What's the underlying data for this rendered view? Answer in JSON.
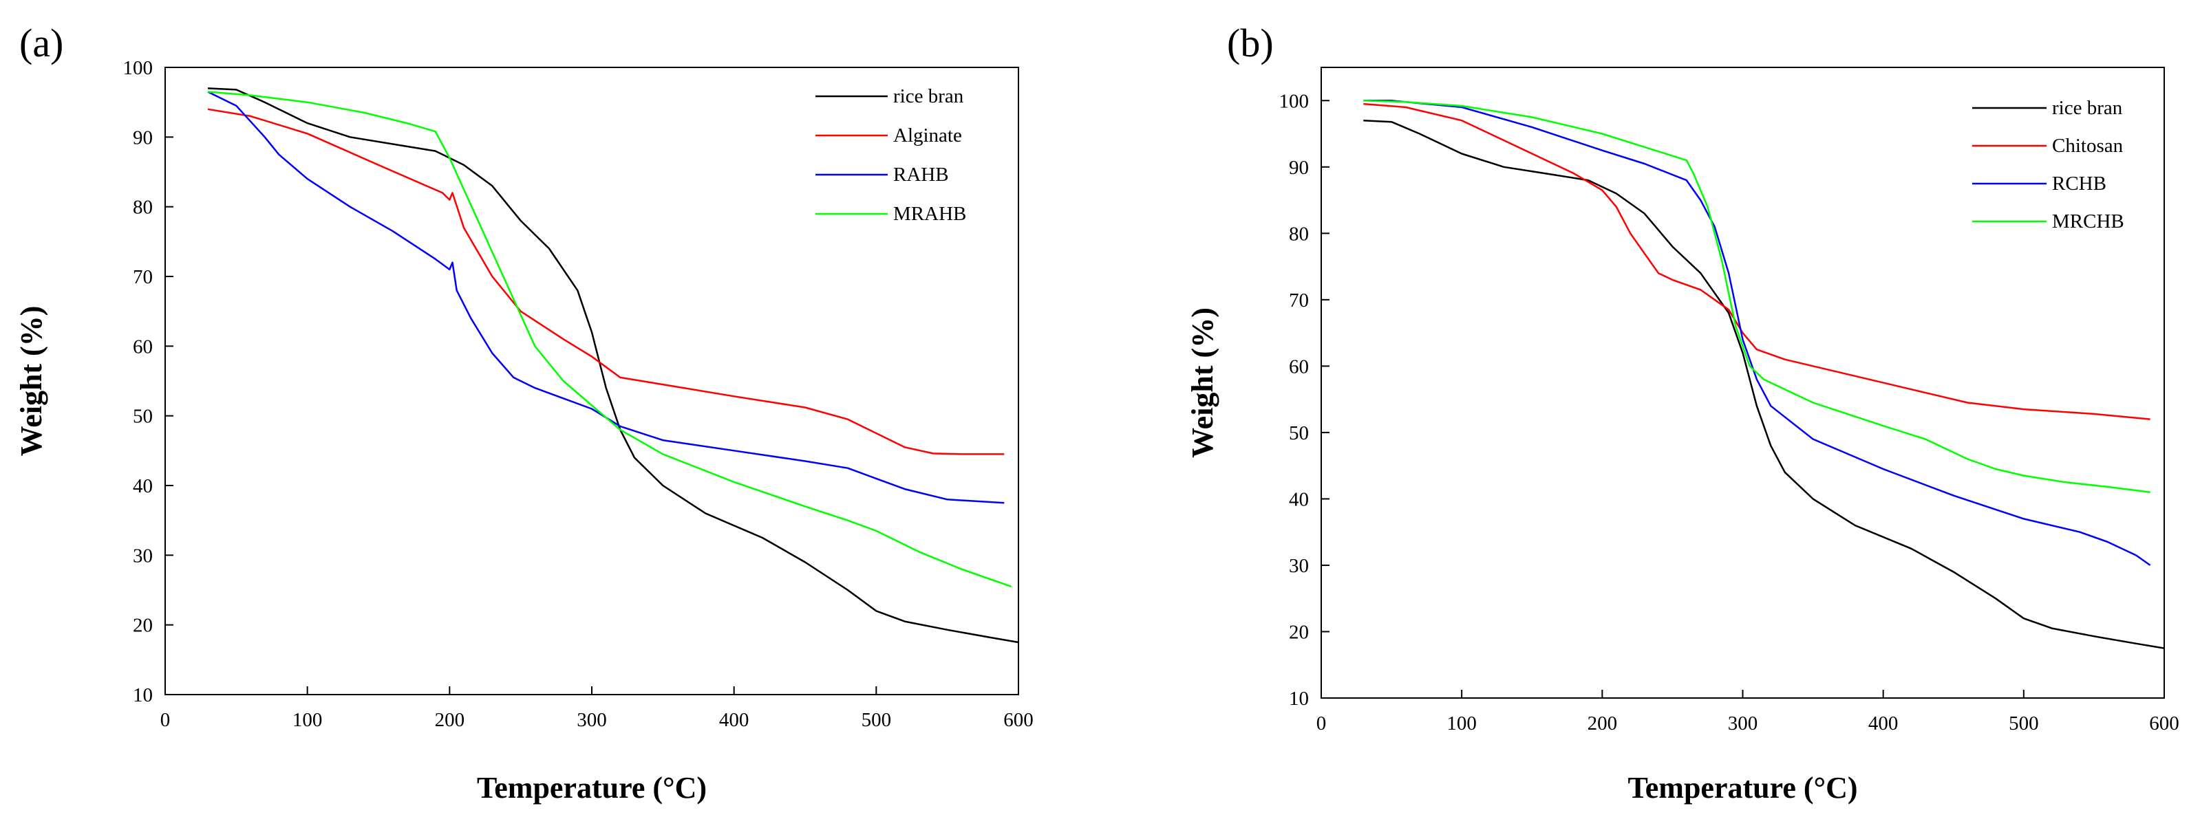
{
  "chart_data": [
    {
      "type": "line",
      "panel_label": "(a)",
      "xlabel": "Temperature (°C)",
      "ylabel": "Weight (%)",
      "xlim": [
        0,
        600
      ],
      "ylim": [
        10,
        100
      ],
      "xticks": [
        0,
        100,
        200,
        300,
        400,
        500,
        600
      ],
      "yticks": [
        10,
        20,
        30,
        40,
        50,
        60,
        70,
        80,
        90,
        100
      ],
      "legend_position": "top-right",
      "series": [
        {
          "name": "rice bran",
          "color": "#000000",
          "x": [
            30,
            50,
            70,
            100,
            130,
            160,
            190,
            210,
            230,
            250,
            270,
            290,
            300,
            310,
            320,
            330,
            350,
            380,
            420,
            450,
            480,
            500,
            520,
            550,
            580,
            600
          ],
          "y": [
            97,
            96.8,
            95,
            92,
            90,
            89,
            88,
            86,
            83,
            78,
            74,
            68,
            62,
            54,
            48,
            44,
            40,
            36,
            32.5,
            29,
            25,
            22,
            20.5,
            19.3,
            18.2,
            17.5
          ]
        },
        {
          "name": "Alginate",
          "color": "#ff0000",
          "x": [
            30,
            60,
            100,
            150,
            195,
            200,
            202,
            210,
            230,
            250,
            280,
            300,
            320,
            350,
            400,
            450,
            480,
            500,
            520,
            540,
            560,
            590
          ],
          "y": [
            94,
            93,
            90.5,
            86,
            82,
            81,
            82,
            77,
            70,
            65,
            61,
            58.5,
            55.5,
            54.5,
            52.8,
            51.2,
            49.5,
            47.5,
            45.5,
            44.6,
            44.5,
            44.5
          ]
        },
        {
          "name": "RAHB",
          "color": "#0000ff",
          "x": [
            30,
            50,
            70,
            80,
            100,
            130,
            160,
            190,
            200,
            202,
            205,
            215,
            230,
            245,
            260,
            280,
            300,
            320,
            350,
            400,
            450,
            480,
            500,
            520,
            550,
            590
          ],
          "y": [
            96.5,
            94.5,
            90,
            87.5,
            84,
            80,
            76.5,
            72.5,
            71,
            72,
            68,
            64,
            59,
            55.5,
            54,
            52.5,
            51,
            48.5,
            46.5,
            45,
            43.5,
            42.5,
            41,
            39.5,
            38,
            37.5
          ]
        },
        {
          "name": "MRAHB",
          "color": "#00ff00",
          "x": [
            30,
            60,
            100,
            140,
            170,
            190,
            200,
            220,
            240,
            260,
            280,
            300,
            320,
            350,
            400,
            450,
            480,
            500,
            530,
            560,
            595
          ],
          "y": [
            96.5,
            96,
            95,
            93.5,
            92,
            90.8,
            87,
            78,
            69,
            60,
            55,
            51.5,
            48,
            44.5,
            40.5,
            37,
            35,
            33.5,
            30.5,
            28,
            25.5
          ]
        }
      ]
    },
    {
      "type": "line",
      "panel_label": "(b)",
      "xlabel": "Temperature (°C)",
      "ylabel": "Weight (%)",
      "xlim": [
        0,
        600
      ],
      "ylim": [
        10,
        105
      ],
      "xticks": [
        0,
        100,
        200,
        300,
        400,
        500,
        600
      ],
      "yticks": [
        10,
        20,
        30,
        40,
        50,
        60,
        70,
        80,
        90,
        100
      ],
      "legend_position": "top-right",
      "series": [
        {
          "name": "rice bran",
          "color": "#000000",
          "x": [
            30,
            50,
            70,
            100,
            130,
            160,
            190,
            210,
            230,
            250,
            270,
            290,
            300,
            310,
            320,
            330,
            350,
            380,
            420,
            450,
            480,
            500,
            520,
            550,
            580,
            600
          ],
          "y": [
            97,
            96.8,
            95,
            92,
            90,
            89,
            88,
            86,
            83,
            78,
            74,
            68,
            62,
            54,
            48,
            44,
            40,
            36,
            32.5,
            29,
            25,
            22,
            20.5,
            19.3,
            18.2,
            17.5
          ]
        },
        {
          "name": "Chitosan",
          "color": "#ff0000",
          "x": [
            30,
            60,
            100,
            140,
            180,
            200,
            210,
            220,
            230,
            240,
            250,
            270,
            290,
            300,
            310,
            330,
            380,
            420,
            460,
            500,
            550,
            590
          ],
          "y": [
            99.5,
            99,
            97,
            93,
            89,
            86.5,
            84,
            80,
            77,
            74,
            73,
            71.5,
            68.5,
            65,
            62.5,
            61,
            58.5,
            56.5,
            54.5,
            53.5,
            52.8,
            52
          ]
        },
        {
          "name": "RCHB",
          "color": "#0000ff",
          "x": [
            30,
            50,
            100,
            150,
            200,
            230,
            260,
            270,
            280,
            290,
            300,
            310,
            320,
            350,
            400,
            450,
            500,
            540,
            560,
            580,
            590
          ],
          "y": [
            100,
            100,
            99,
            96,
            92.5,
            90.5,
            88,
            85,
            81,
            74,
            64,
            58,
            54,
            49,
            44.5,
            40.5,
            37,
            35,
            33.5,
            31.5,
            30
          ]
        },
        {
          "name": "MRCHB",
          "color": "#00ff00",
          "x": [
            30,
            60,
            100,
            150,
            200,
            230,
            260,
            265,
            275,
            285,
            295,
            305,
            315,
            350,
            400,
            430,
            460,
            480,
            500,
            530,
            560,
            590
          ],
          "y": [
            100,
            99.8,
            99.2,
            97.5,
            95,
            93,
            91,
            89,
            84,
            76,
            66,
            60,
            58,
            54.5,
            51,
            49,
            46,
            44.5,
            43.5,
            42.5,
            41.8,
            41
          ]
        }
      ]
    }
  ]
}
